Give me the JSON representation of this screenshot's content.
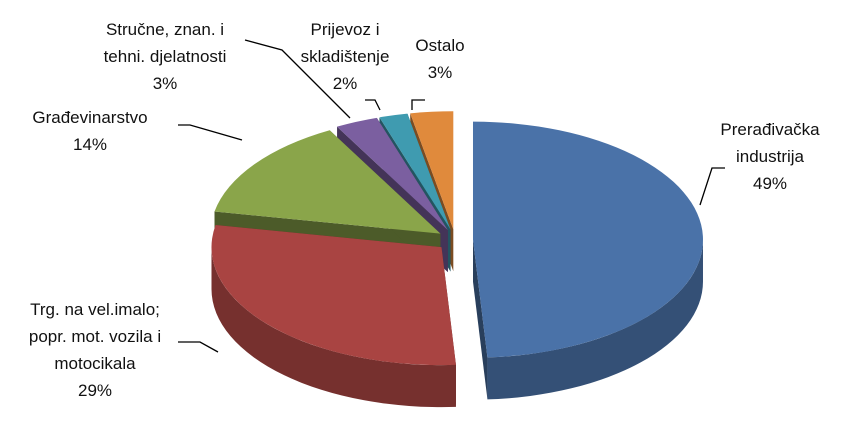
{
  "chart_data": {
    "type": "pie",
    "three_d": true,
    "exploded": true,
    "categories": [
      "Prerađivačka industrija",
      "Trg. na vel.imalo; popr. mot. vozila i motocikala",
      "Građevinarstvo",
      "Stručne, znan. i tehni. djelatnosti",
      "Prijevoz i skladištenje",
      "Ostalo"
    ],
    "values": [
      49,
      29,
      14,
      3,
      2,
      3
    ],
    "value_labels": [
      "49%",
      "29%",
      "14%",
      "3%",
      "2%",
      "3%"
    ],
    "colors": [
      "#4a72a8",
      "#a94442",
      "#8aa54a",
      "#7b5fa0",
      "#3f9bb0",
      "#e08a3c"
    ]
  }
}
